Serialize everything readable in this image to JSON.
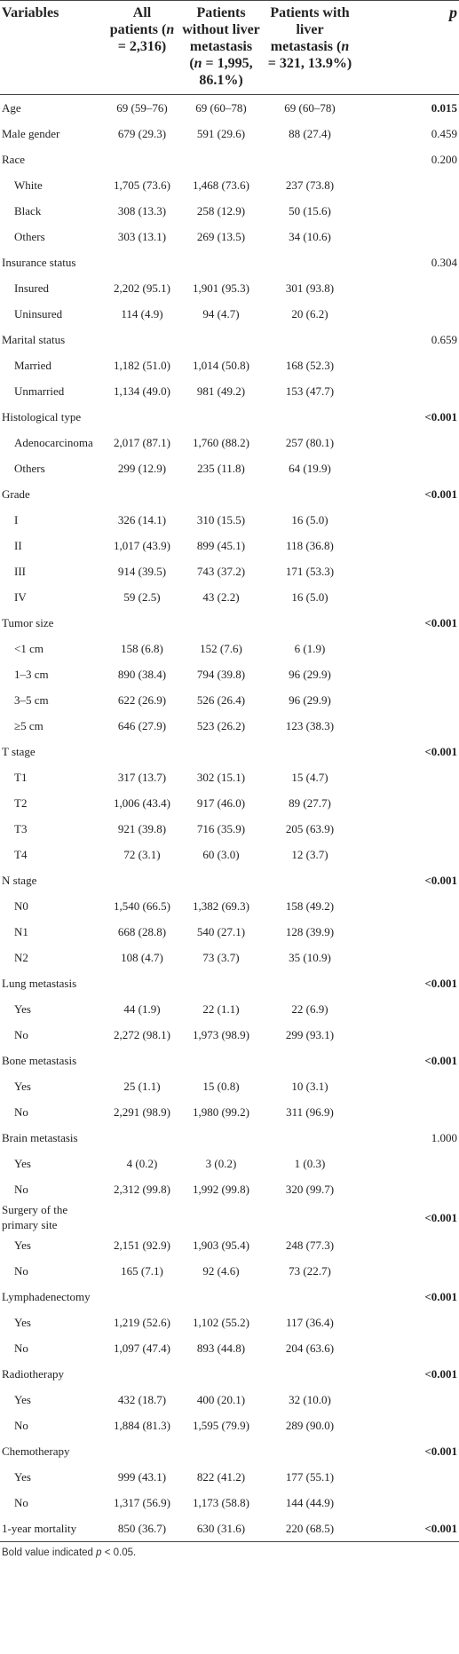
{
  "header": [
    "Variables",
    "All patients (n = 2,316)",
    "Patients without liver metastasis (n = 1,995, 86.1%)",
    "Patients with liver metastasis (n = 321, 13.9%)",
    "p"
  ],
  "rows": [
    {
      "label": "Age",
      "cells": [
        "69 (59–76)",
        "69 (60–78)",
        "69 (60–78)"
      ],
      "p": "0.015",
      "p_bold": true
    },
    {
      "label": "Male gender",
      "cells": [
        "679 (29.3)",
        "591 (29.6)",
        "88 (27.4)"
      ],
      "p": "0.459",
      "p_bold": false
    },
    {
      "label": "Race",
      "p": "0.200",
      "p_bold": false,
      "items": [
        {
          "label": "White",
          "cells": [
            "1,705 (73.6)",
            "1,468 (73.6)",
            "237 (73.8)"
          ]
        },
        {
          "label": "Black",
          "cells": [
            "308 (13.3)",
            "258 (12.9)",
            "50 (15.6)"
          ]
        },
        {
          "label": "Others",
          "cells": [
            "303 (13.1)",
            "269 (13.5)",
            "34 (10.6)"
          ]
        }
      ]
    },
    {
      "label": "Insurance status",
      "p": "0.304",
      "p_bold": false,
      "items": [
        {
          "label": "Insured",
          "cells": [
            "2,202 (95.1)",
            "1,901 (95.3)",
            "301 (93.8)"
          ]
        },
        {
          "label": "Uninsured",
          "cells": [
            "114 (4.9)",
            "94 (4.7)",
            "20 (6.2)"
          ]
        }
      ]
    },
    {
      "label": "Marital status",
      "p": "0.659",
      "p_bold": false,
      "items": [
        {
          "label": "Married",
          "cells": [
            "1,182 (51.0)",
            "1,014 (50.8)",
            "168 (52.3)"
          ]
        },
        {
          "label": "Unmarried",
          "cells": [
            "1,134 (49.0)",
            "981 (49.2)",
            "153 (47.7)"
          ]
        }
      ]
    },
    {
      "label": "Histological type",
      "p": "<0.001",
      "p_bold": true,
      "items": [
        {
          "label": "Adenocarcinoma",
          "cells": [
            "2,017 (87.1)",
            "1,760 (88.2)",
            "257 (80.1)"
          ]
        },
        {
          "label": "Others",
          "cells": [
            "299 (12.9)",
            "235 (11.8)",
            "64 (19.9)"
          ]
        }
      ]
    },
    {
      "label": "Grade",
      "p": "<0.001",
      "p_bold": true,
      "items": [
        {
          "label": "I",
          "cells": [
            "326 (14.1)",
            "310 (15.5)",
            "16 (5.0)"
          ]
        },
        {
          "label": "II",
          "cells": [
            "1,017 (43.9)",
            "899 (45.1)",
            "118 (36.8)"
          ]
        },
        {
          "label": "III",
          "cells": [
            "914 (39.5)",
            "743 (37.2)",
            "171 (53.3)"
          ]
        },
        {
          "label": "IV",
          "cells": [
            "59 (2.5)",
            "43 (2.2)",
            "16 (5.0)"
          ]
        }
      ]
    },
    {
      "label": "Tumor size",
      "p": "<0.001",
      "p_bold": true,
      "items": [
        {
          "label": "<1 cm",
          "cells": [
            "158 (6.8)",
            "152 (7.6)",
            "6 (1.9)"
          ]
        },
        {
          "label": "1–3 cm",
          "cells": [
            "890 (38.4)",
            "794 (39.8)",
            "96 (29.9)"
          ]
        },
        {
          "label": "3–5 cm",
          "cells": [
            "622 (26.9)",
            "526 (26.4)",
            "96 (29.9)"
          ]
        },
        {
          "label": "≥5 cm",
          "cells": [
            "646 (27.9)",
            "523 (26.2)",
            "123 (38.3)"
          ]
        }
      ]
    },
    {
      "label": "T stage",
      "p": "<0.001",
      "p_bold": true,
      "items": [
        {
          "label": "T1",
          "cells": [
            "317 (13.7)",
            "302 (15.1)",
            "15 (4.7)"
          ]
        },
        {
          "label": "T2",
          "cells": [
            "1,006 (43.4)",
            "917 (46.0)",
            "89 (27.7)"
          ]
        },
        {
          "label": "T3",
          "cells": [
            "921 (39.8)",
            "716 (35.9)",
            "205 (63.9)"
          ]
        },
        {
          "label": "T4",
          "cells": [
            "72 (3.1)",
            "60 (3.0)",
            "12 (3.7)"
          ]
        }
      ]
    },
    {
      "label": "N stage",
      "p": "<0.001",
      "p_bold": true,
      "items": [
        {
          "label": "N0",
          "cells": [
            "1,540 (66.5)",
            "1,382 (69.3)",
            "158 (49.2)"
          ]
        },
        {
          "label": "N1",
          "cells": [
            "668 (28.8)",
            "540 (27.1)",
            "128 (39.9)"
          ]
        },
        {
          "label": "N2",
          "cells": [
            "108 (4.7)",
            "73 (3.7)",
            "35 (10.9)"
          ]
        }
      ]
    },
    {
      "label": "Lung metastasis",
      "p": "<0.001",
      "p_bold": true,
      "items": [
        {
          "label": "Yes",
          "cells": [
            "44 (1.9)",
            "22 (1.1)",
            "22 (6.9)"
          ]
        },
        {
          "label": "No",
          "cells": [
            "2,272 (98.1)",
            "1,973 (98.9)",
            "299 (93.1)"
          ]
        }
      ]
    },
    {
      "label": "Bone metastasis",
      "p": "<0.001",
      "p_bold": true,
      "items": [
        {
          "label": "Yes",
          "cells": [
            "25 (1.1)",
            "15 (0.8)",
            "10 (3.1)"
          ]
        },
        {
          "label": "No",
          "cells": [
            "2,291 (98.9)",
            "1,980 (99.2)",
            "311 (96.9)"
          ]
        }
      ]
    },
    {
      "label": "Brain metastasis",
      "p": "1.000",
      "p_bold": false,
      "items": [
        {
          "label": "Yes",
          "cells": [
            "4 (0.2)",
            "3 (0.2)",
            "1 (0.3)"
          ]
        },
        {
          "label": "No",
          "cells": [
            "2,312 (99.8)",
            "1,992 (99.8)",
            "320 (99.7)"
          ]
        }
      ]
    },
    {
      "label": "Surgery of the primary site",
      "p": "<0.001",
      "p_bold": true,
      "items": [
        {
          "label": "Yes",
          "cells": [
            "2,151 (92.9)",
            "1,903 (95.4)",
            "248 (77.3)"
          ]
        },
        {
          "label": "No",
          "cells": [
            "165 (7.1)",
            "92 (4.6)",
            "73 (22.7)"
          ]
        }
      ]
    },
    {
      "label": "Lymphadenectomy",
      "p": "<0.001",
      "p_bold": true,
      "items": [
        {
          "label": "Yes",
          "cells": [
            "1,219 (52.6)",
            "1,102 (55.2)",
            "117 (36.4)"
          ]
        },
        {
          "label": "No",
          "cells": [
            "1,097 (47.4)",
            "893 (44.8)",
            "204 (63.6)"
          ]
        }
      ]
    },
    {
      "label": "Radiotherapy",
      "p": "<0.001",
      "p_bold": true,
      "items": [
        {
          "label": "Yes",
          "cells": [
            "432 (18.7)",
            "400 (20.1)",
            "32 (10.0)"
          ]
        },
        {
          "label": "No",
          "cells": [
            "1,884 (81.3)",
            "1,595 (79.9)",
            "289 (90.0)"
          ]
        }
      ]
    },
    {
      "label": "Chemotherapy",
      "p": "<0.001",
      "p_bold": true,
      "items": [
        {
          "label": "Yes",
          "cells": [
            "999 (43.1)",
            "822 (41.2)",
            "177 (55.1)"
          ]
        },
        {
          "label": "No",
          "cells": [
            "1,317 (56.9)",
            "1,173 (58.8)",
            "144 (44.9)"
          ]
        }
      ]
    },
    {
      "label": "1-year mortality",
      "cells": [
        "850 (36.7)",
        "630 (31.6)",
        "220 (68.5)"
      ],
      "p": "<0.001",
      "p_bold": true
    }
  ],
  "footnote": "Bold value indicated p < 0.05."
}
